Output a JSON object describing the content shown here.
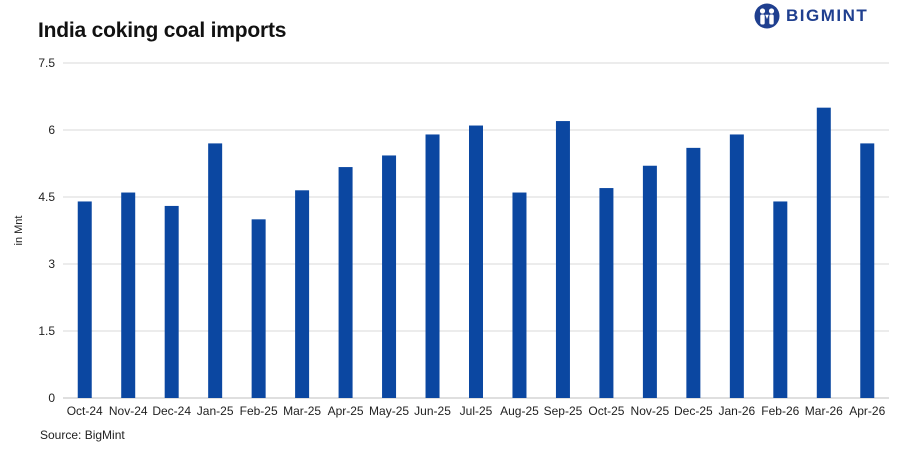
{
  "title": "India coking coal imports",
  "brand": {
    "name": "BIGMINT",
    "color": "#1f3f8f",
    "icon": "people-logo-icon"
  },
  "source": "Source: BigMint",
  "chart_data": {
    "type": "bar",
    "title": "India coking coal imports",
    "xlabel": "",
    "ylabel": "in Mnt",
    "ylim": [
      0,
      7.5
    ],
    "yticks": [
      "0",
      "1.5",
      "3",
      "4.5",
      "6",
      "7.5"
    ],
    "grid": true,
    "legend": "none",
    "bar_color": "#0b47a1",
    "categories": [
      "Oct-24",
      "Nov-24",
      "Dec-24",
      "Jan-25",
      "Feb-25",
      "Mar-25",
      "Apr-25",
      "May-25",
      "Jun-25",
      "Jul-25",
      "Aug-25",
      "Sep-25",
      "Oct-25",
      "Nov-25",
      "Dec-25",
      "Jan-26",
      "Feb-26",
      "Mar-26",
      "Apr-26"
    ],
    "values": [
      4.4,
      4.6,
      4.3,
      5.7,
      4.0,
      4.65,
      5.17,
      5.43,
      5.9,
      6.1,
      4.6,
      6.2,
      4.7,
      5.2,
      5.6,
      5.9,
      4.4,
      6.5,
      5.7
    ]
  }
}
